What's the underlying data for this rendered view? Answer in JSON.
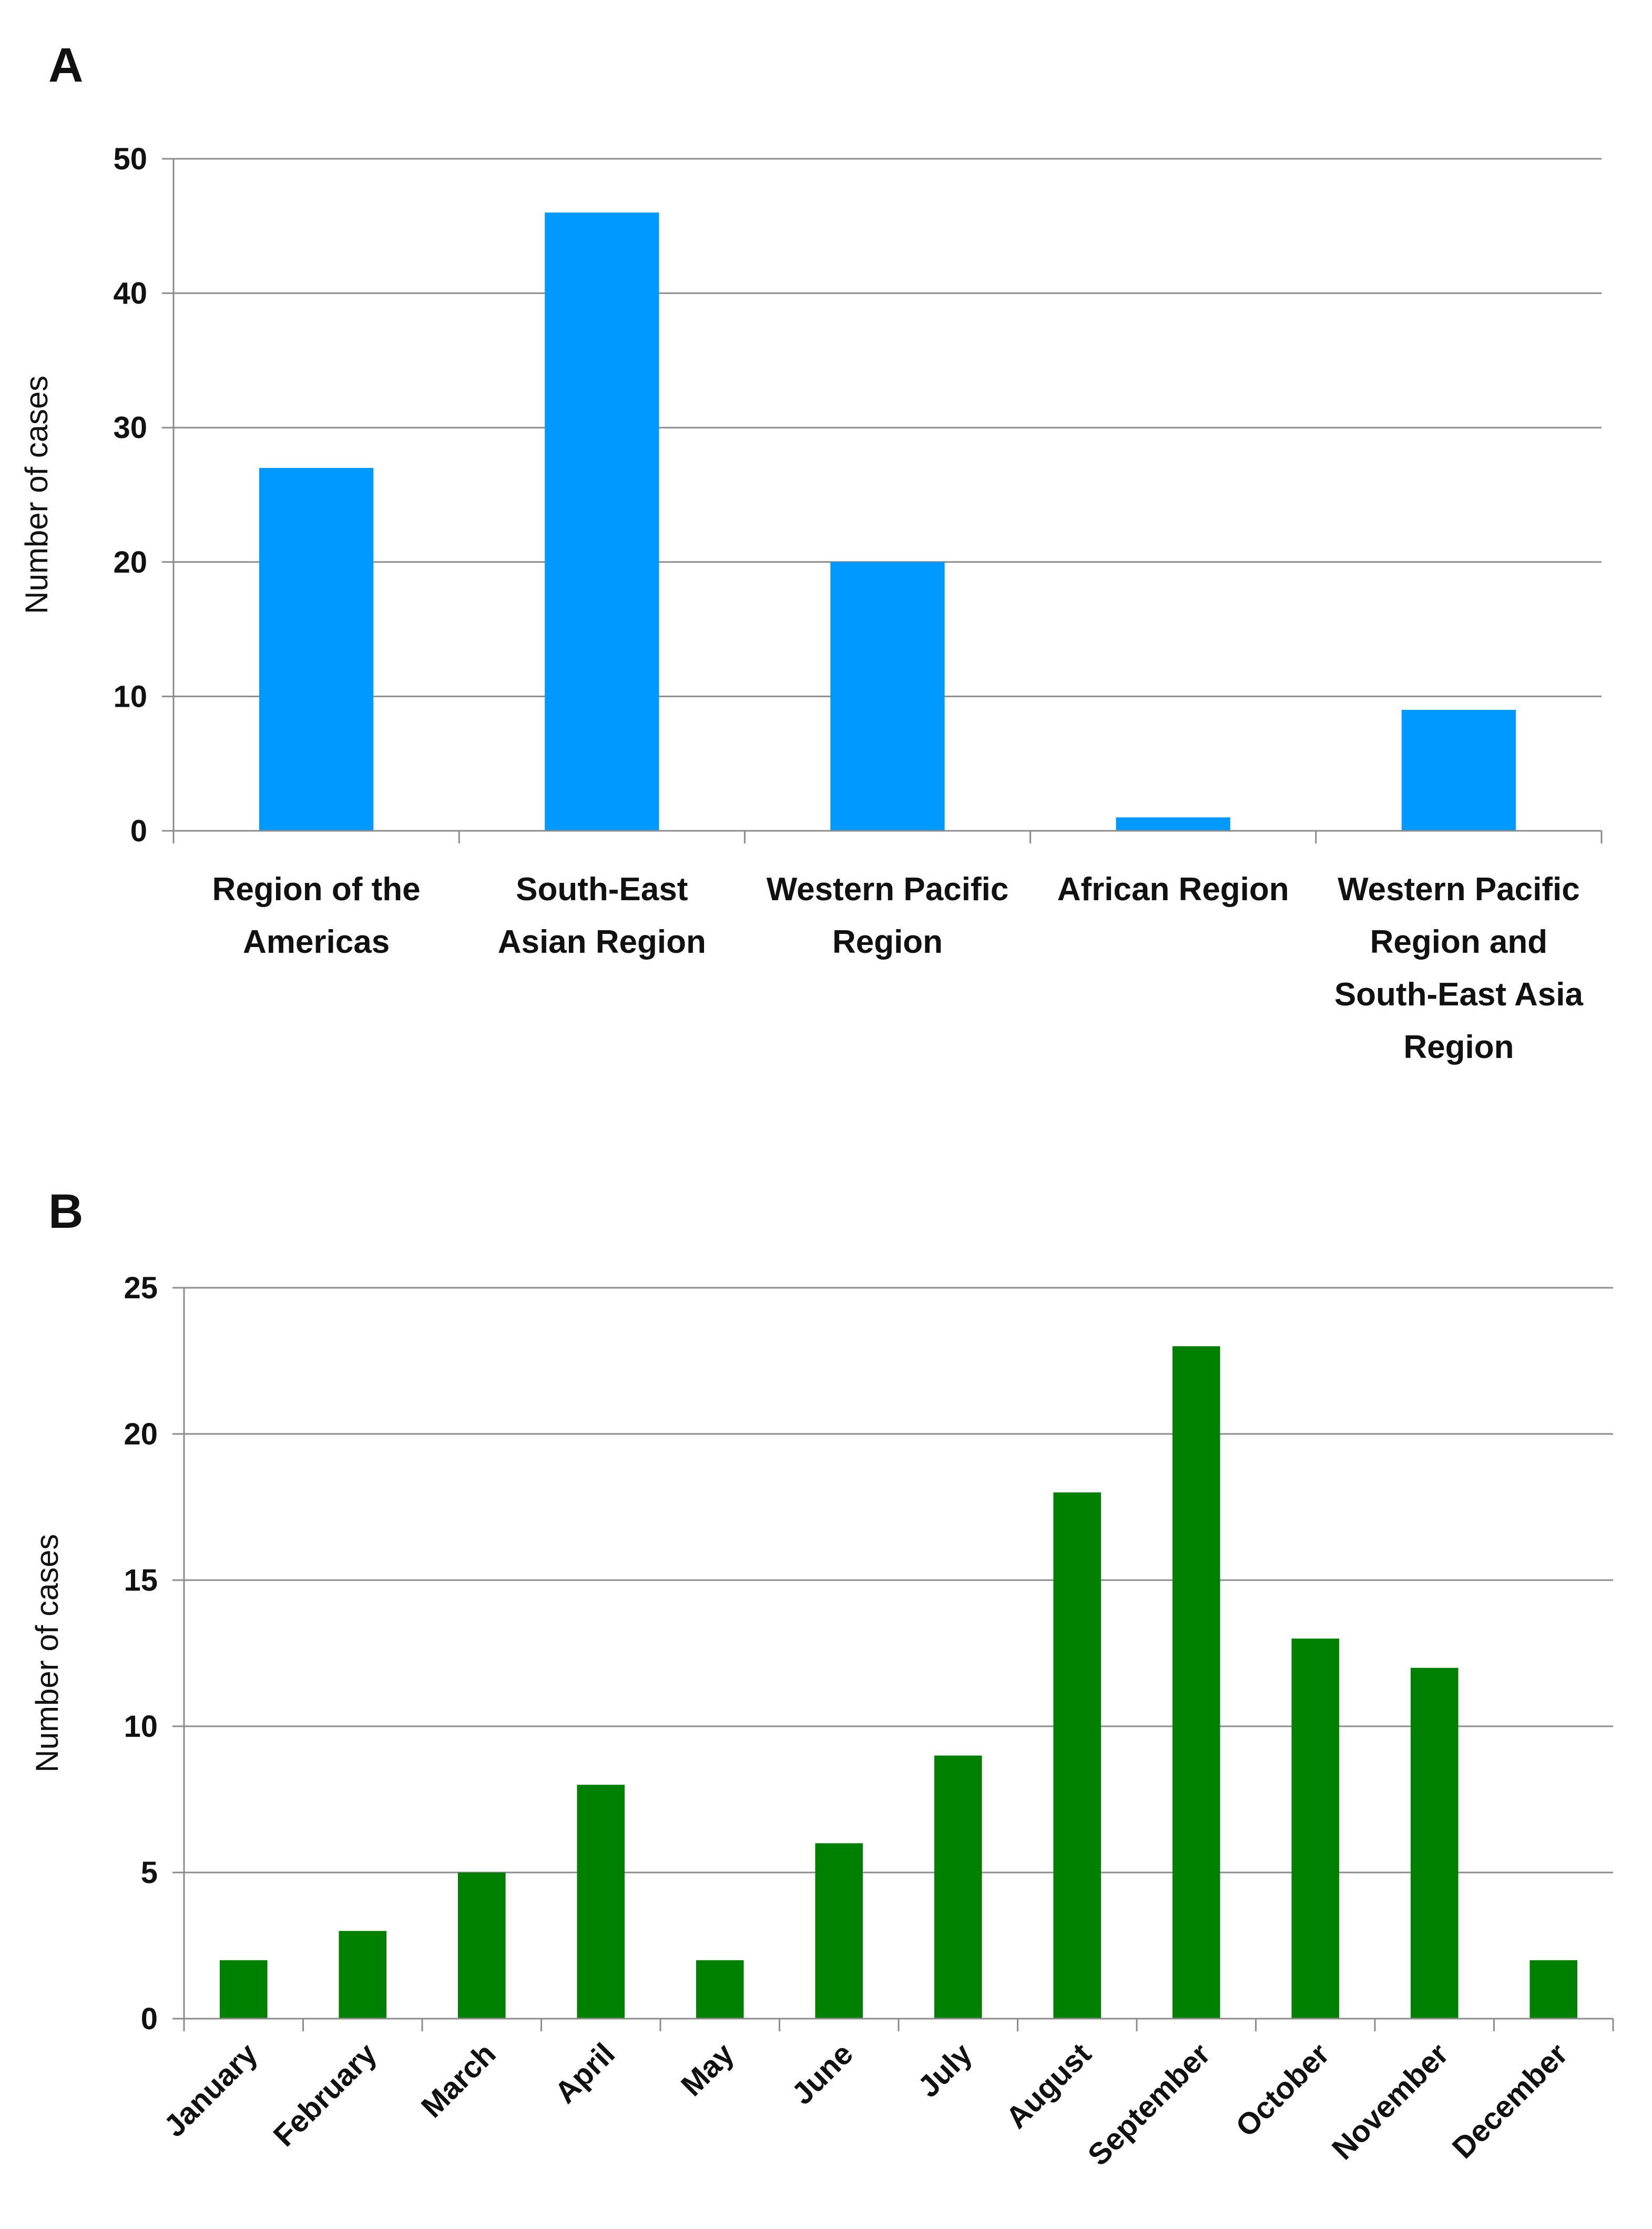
{
  "chart_data": [
    {
      "panel": "A",
      "type": "bar",
      "categories": [
        [
          "Region of the",
          "Americas"
        ],
        [
          "South-East",
          "Asian Region"
        ],
        [
          "Western Pacific",
          "Region"
        ],
        [
          "African Region"
        ],
        [
          "Western Pacific",
          "Region and",
          "South-East Asia",
          "Region"
        ]
      ],
      "values": [
        27,
        46,
        20,
        1,
        9
      ],
      "ylabel": "Number of cases",
      "xlabel": "",
      "ylim": [
        0,
        50
      ],
      "yticks": [
        0,
        10,
        20,
        30,
        40,
        50
      ],
      "grid": true,
      "color": "#0099FF"
    },
    {
      "panel": "B",
      "type": "bar",
      "categories": [
        "January",
        "February",
        "March",
        "April",
        "May",
        "June",
        "July",
        "August",
        "September",
        "October",
        "November",
        "December"
      ],
      "values": [
        2,
        3,
        5,
        8,
        2,
        6,
        9,
        18,
        23,
        13,
        12,
        2
      ],
      "ylabel": "Number of cases",
      "xlabel": "",
      "ylim": [
        0,
        25
      ],
      "yticks": [
        0,
        5,
        10,
        15,
        20,
        25
      ],
      "grid": true,
      "color": "#008000"
    }
  ]
}
